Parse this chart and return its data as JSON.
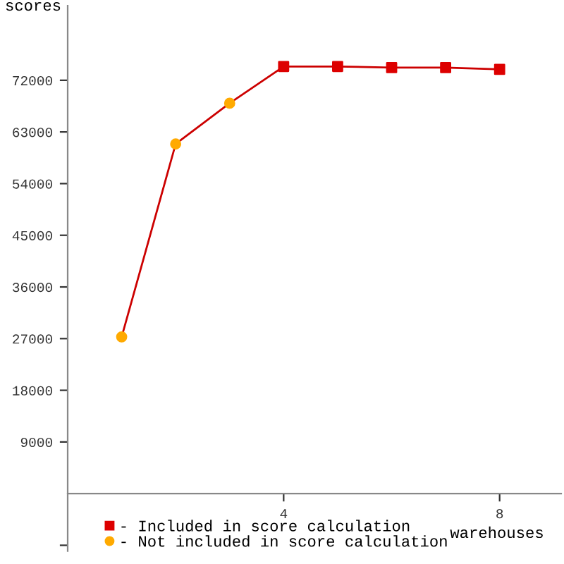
{
  "chart_data": {
    "type": "line",
    "ylabel": "scores",
    "xlabel": "warehouses",
    "x": [
      1,
      2,
      3,
      4,
      5,
      6,
      7,
      8
    ],
    "series": [
      {
        "color": "#cc0000",
        "values": [
          27300,
          60900,
          68000,
          74400,
          74400,
          74200,
          74200,
          73900
        ],
        "marker": "none"
      },
      {
        "type": "scatter",
        "name": "- Included in score calculation",
        "color": "#dd0000",
        "x": [
          4,
          5,
          6,
          7,
          8
        ],
        "values": [
          74400,
          74400,
          74200,
          74200,
          73900
        ],
        "marker": "square"
      },
      {
        "type": "scatter",
        "name": "- Not included in score calculation",
        "color": "#ffaa00",
        "x": [
          1,
          2,
          3
        ],
        "values": [
          27300,
          60900,
          68000
        ],
        "marker": "circle"
      }
    ],
    "xlim": [
      0,
      9.14
    ],
    "ylim": [
      -10000,
      85000
    ],
    "xticks": [
      4,
      8
    ],
    "yticks": [
      {
        "value": -9000,
        "label": null
      },
      9000,
      18000,
      27000,
      36000,
      45000,
      54000,
      63000,
      72000
    ],
    "legend": "bottom left",
    "grid": false
  }
}
